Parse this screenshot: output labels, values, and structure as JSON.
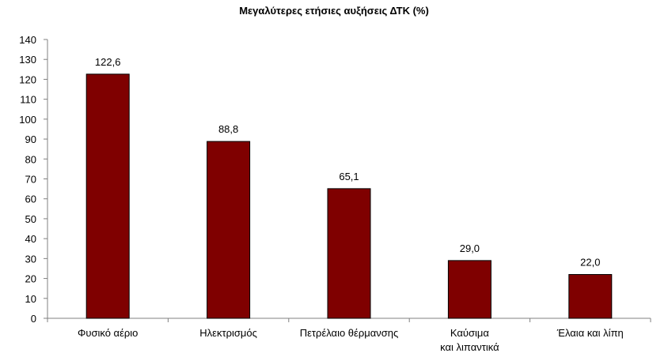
{
  "chart_data": {
    "type": "bar",
    "title": "Μεγαλύτερες ετήσιες αυξήσεις ΔΤΚ (%)",
    "categories": [
      [
        "Φυσικό αέριο"
      ],
      [
        "Ηλεκτρισμός"
      ],
      [
        "Πετρέλαιο θέρμανσης"
      ],
      [
        "Καύσιμα",
        "και λιπαντικά"
      ],
      [
        "Έλαια και λίπη"
      ]
    ],
    "values": [
      122.6,
      88.8,
      65.1,
      29.0,
      22.0
    ],
    "value_labels": [
      "122,6",
      "88,8",
      "65,1",
      "29,0",
      "22,0"
    ],
    "ylim": [
      0,
      140
    ],
    "ytick_step": 10,
    "grid": false,
    "legend": "none",
    "bar_color": "#7f0000",
    "bar_edge_color": "#000000"
  }
}
